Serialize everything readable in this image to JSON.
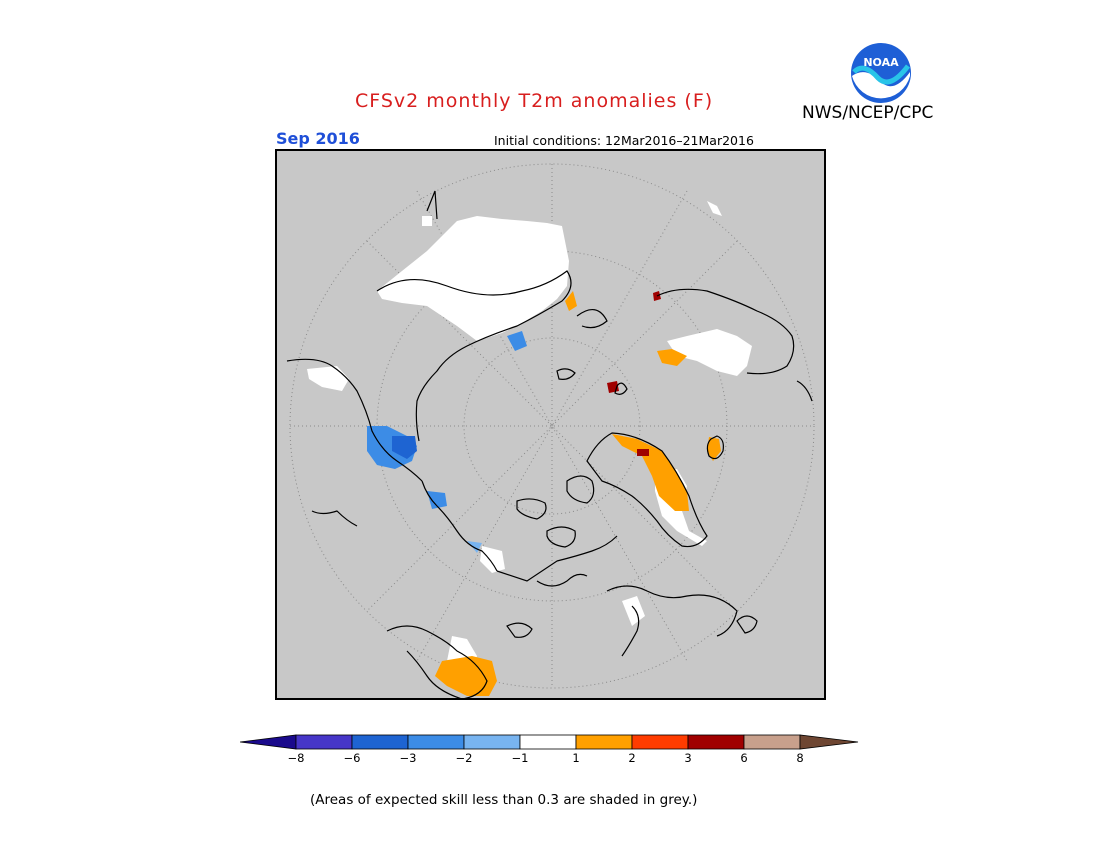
{
  "header": {
    "title": "CFSv2 monthly T2m anomalies (F)",
    "agency": "NWS/NCEP/CPC",
    "logo_text": "NOAA",
    "month": "Sep 2016",
    "initial_conditions": "Initial conditions: 12Mar2016–21Mar2016"
  },
  "legend": {
    "ticks": [
      "−8",
      "−6",
      "−3",
      "−2",
      "−1",
      "1",
      "2",
      "3",
      "6",
      "8"
    ],
    "colors": {
      "below_low": "#1a0a8c",
      "minus8_to_minus6": "#4636c8",
      "minus6_to_minus3": "#1e64d2",
      "minus3_to_minus2": "#3c8ce6",
      "minus2_to_minus1": "#78b4f0",
      "minus1_to_1": "#ffffff",
      "1_to_2": "#ffa000",
      "2_to_3": "#ff3c00",
      "3_to_6": "#a00000",
      "6_to_8": "#c8a08c",
      "above_high": "#6e4632"
    }
  },
  "map": {
    "projection": "polar stereographic (north)",
    "masked_color": "#c8c8c8"
  },
  "footnote": "(Areas of expected skill less than 0.3 are shaded in grey.)"
}
